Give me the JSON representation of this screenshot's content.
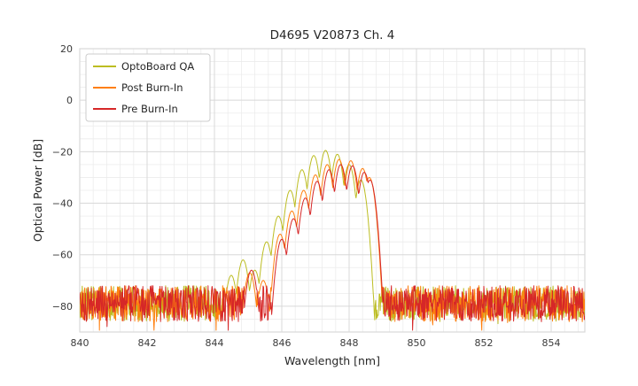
{
  "figure": {
    "title": "D4695 V20873 Ch. 4"
  },
  "chart_data": {
    "type": "line",
    "title": "D4695 V20873 Ch. 4",
    "xlabel": "Wavelength [nm]",
    "ylabel": "Optical Power [dB]",
    "xlim": [
      840,
      855
    ],
    "ylim": [
      -90,
      20
    ],
    "xticks": [
      840,
      842,
      844,
      846,
      848,
      850,
      852,
      854
    ],
    "yticks": [
      20,
      0,
      -20,
      -40,
      -60,
      -80
    ],
    "x_minor_step": 0.4,
    "y_minor_step": 5,
    "grid": true,
    "grid_major_color": "#d9d9d9",
    "grid_minor_color": "#ececec",
    "legend": {
      "position": "upper left",
      "entries": [
        "OptoBoard QA",
        "Post Burn-In",
        "Pre Burn-In"
      ]
    },
    "series": [
      {
        "name": "OptoBoard QA",
        "color": "#bcbd22",
        "noise_floor_db": -79,
        "noise_spread_db": 7,
        "mode_curvature_db_per_nm2": 330,
        "signal_range_nm": [
          844.2,
          848.8
        ],
        "modes": [
          [
            844.5,
            -68
          ],
          [
            844.85,
            -62
          ],
          [
            845.2,
            -66
          ],
          [
            845.55,
            -55
          ],
          [
            845.9,
            -45
          ],
          [
            846.25,
            -35
          ],
          [
            846.6,
            -27
          ],
          [
            846.95,
            -21.5
          ],
          [
            847.3,
            -19.5
          ],
          [
            847.65,
            -21
          ],
          [
            848.0,
            -25
          ],
          [
            848.35,
            -31
          ]
        ],
        "peak_wavelength_nm": 847.3,
        "peak_power_db": -19.5
      },
      {
        "name": "Post Burn-In",
        "color": "#ff7f0e",
        "noise_floor_db": -79,
        "noise_spread_db": 7,
        "mode_curvature_db_per_nm2": 330,
        "signal_range_nm": [
          845.0,
          849.0
        ],
        "modes": [
          [
            845.05,
            -67
          ],
          [
            845.45,
            -70
          ],
          [
            845.95,
            -52
          ],
          [
            846.3,
            -43
          ],
          [
            846.65,
            -35
          ],
          [
            847.0,
            -29
          ],
          [
            847.35,
            -25
          ],
          [
            847.7,
            -23
          ],
          [
            848.05,
            -23.5
          ],
          [
            848.4,
            -26.5
          ],
          [
            848.6,
            -30
          ]
        ],
        "peak_wavelength_nm": 847.7,
        "peak_power_db": -23
      },
      {
        "name": "Pre Burn-In",
        "color": "#d62728",
        "noise_floor_db": -79,
        "noise_spread_db": 7,
        "mode_curvature_db_per_nm2": 330,
        "signal_range_nm": [
          845.0,
          849.0
        ],
        "modes": [
          [
            845.1,
            -66
          ],
          [
            846.0,
            -54
          ],
          [
            846.35,
            -46
          ],
          [
            846.7,
            -38
          ],
          [
            847.05,
            -31.5
          ],
          [
            847.4,
            -27
          ],
          [
            847.75,
            -25
          ],
          [
            848.1,
            -25.5
          ],
          [
            848.45,
            -28
          ],
          [
            848.62,
            -31
          ]
        ],
        "peak_wavelength_nm": 847.75,
        "peak_power_db": -25
      }
    ]
  }
}
